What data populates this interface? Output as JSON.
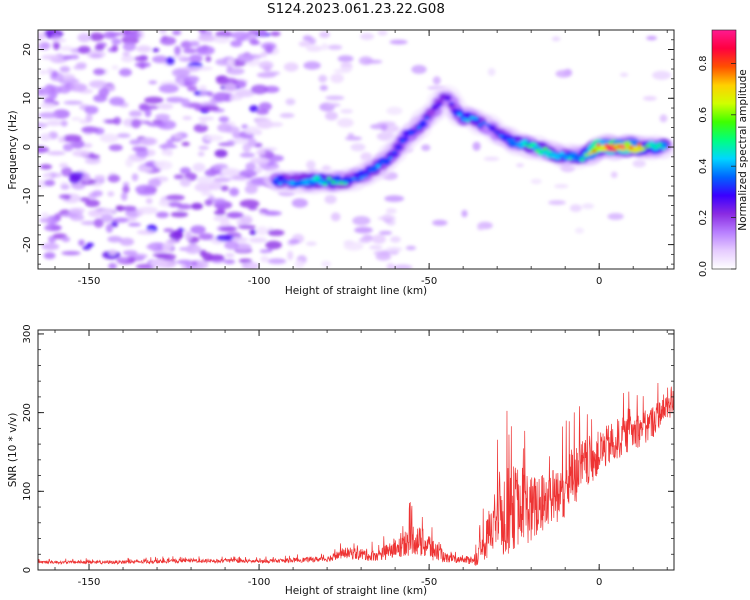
{
  "title": "S124.2023.061.23.22.G08",
  "chart_data": [
    {
      "type": "heatmap",
      "title": "S124.2023.061.23.22.G08",
      "xlabel": "Height of straight line (km)",
      "ylabel": "Frequency (Hz)",
      "xlim": [
        -165,
        22
      ],
      "ylim": [
        -25,
        24
      ],
      "xticks": [
        -150,
        -100,
        -50,
        0
      ],
      "yticks": [
        -20,
        -10,
        0,
        10,
        20
      ],
      "colorbar": {
        "label": "Normalized spectral amplitude",
        "range": [
          0,
          0.93
        ],
        "ticks": [
          0.0,
          0.2,
          0.4,
          0.6,
          0.8
        ],
        "colormap": [
          "#ffffff",
          "#e6ccff",
          "#b87fff",
          "#8a2be2",
          "#3a00ff",
          "#0064ff",
          "#00d6ff",
          "#00ff80",
          "#3fff00",
          "#d0ff00",
          "#ffd000",
          "#ff5000",
          "#ff0040",
          "#ff1a90"
        ]
      },
      "ridge": {
        "x": [
          -95,
          -90,
          -85,
          -80,
          -75,
          -70,
          -65,
          -60,
          -57,
          -55,
          -52,
          -50,
          -47,
          -45,
          -42,
          -40,
          -37,
          -35,
          -32,
          -30,
          -25,
          -20,
          -15,
          -10,
          -5,
          0,
          5,
          10,
          15,
          20
        ],
        "y": [
          -7,
          -7,
          -7,
          -7,
          -7,
          -6,
          -4,
          -1,
          2,
          3,
          5,
          6,
          9,
          11,
          7,
          6,
          6,
          5,
          4,
          3,
          1,
          0,
          -1,
          -2,
          -2,
          0,
          0,
          0,
          0,
          0
        ],
        "amplitude": [
          0.35,
          0.4,
          0.45,
          0.5,
          0.45,
          0.35,
          0.4,
          0.35,
          0.35,
          0.3,
          0.35,
          0.3,
          0.3,
          0.25,
          0.35,
          0.4,
          0.4,
          0.35,
          0.3,
          0.3,
          0.45,
          0.5,
          0.5,
          0.4,
          0.45,
          0.9,
          0.9,
          0.85,
          0.55,
          0.45
        ]
      },
      "grid": false
    },
    {
      "type": "line",
      "xlabel": "Height of straight line (km)",
      "ylabel": "SNR (10 * v/v)",
      "xlim": [
        -165,
        22
      ],
      "ylim": [
        0,
        305
      ],
      "xticks": [
        -150,
        -100,
        -50,
        0
      ],
      "yticks": [
        0,
        100,
        200,
        300
      ],
      "color": "#ee3333",
      "envelope": {
        "x": [
          -165,
          -140,
          -120,
          -100,
          -80,
          -75,
          -70,
          -65,
          -60,
          -55,
          -50,
          -45,
          -40,
          -36,
          -33,
          -30,
          -28,
          -25,
          -22,
          -20,
          -15,
          -10,
          -5,
          0,
          5,
          10,
          15,
          18,
          21,
          22
        ],
        "base": [
          10,
          10,
          12,
          11,
          14,
          22,
          20,
          18,
          28,
          40,
          30,
          15,
          12,
          15,
          40,
          80,
          70,
          80,
          85,
          75,
          90,
          105,
          130,
          150,
          165,
          175,
          185,
          200,
          215,
          210
        ],
        "spread": [
          4,
          5,
          6,
          5,
          8,
          15,
          18,
          15,
          30,
          45,
          40,
          12,
          8,
          20,
          60,
          100,
          130,
          120,
          110,
          100,
          80,
          90,
          80,
          60,
          60,
          50,
          50,
          40,
          50,
          40
        ]
      },
      "grid": false
    }
  ]
}
